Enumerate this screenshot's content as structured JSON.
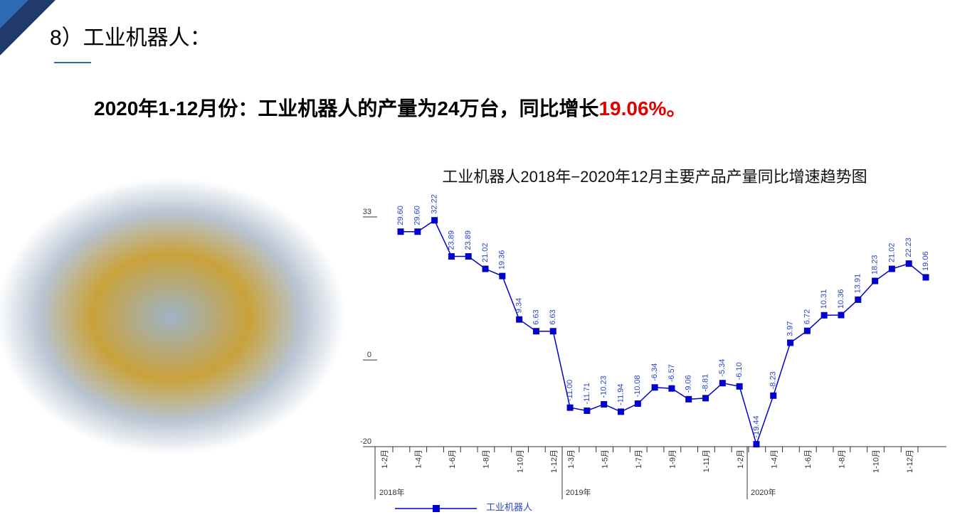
{
  "slide_title": "8）工业机器人：",
  "headline": {
    "text": "2020年1-12月份：工业机器人的产量为24万台，同比增长",
    "highlight": "19.06%。"
  },
  "chart_data": {
    "type": "line",
    "title": "工业机器人2018年−2020年12月主要产品产量同比增速趋势图",
    "categories": [
      "1-2月",
      null,
      "1-4月",
      null,
      "1-6月",
      null,
      "1-8月",
      null,
      "1-10月",
      null,
      "1-12月",
      "1-3月",
      null,
      "1-5月",
      null,
      "1-7月",
      null,
      "1-9月",
      null,
      "1-11月",
      null,
      "1-2月",
      null,
      "1-4月",
      null,
      "1-6月",
      null,
      "1-8月",
      null,
      "1-10月",
      null,
      "1-12月"
    ],
    "x_groups": [
      "2018年",
      "2019年",
      "2020年"
    ],
    "series": [
      {
        "name": "工业机器人",
        "color": "#0000cc",
        "values": [
          29.6,
          29.6,
          32.22,
          23.89,
          23.89,
          21.02,
          19.36,
          9.34,
          6.63,
          6.63,
          -11.0,
          -11.71,
          -10.23,
          -11.94,
          -10.08,
          -6.34,
          -6.57,
          -9.06,
          -8.81,
          -5.34,
          -6.1,
          -19.44,
          -8.23,
          3.97,
          6.72,
          10.31,
          10.36,
          13.91,
          18.23,
          21.02,
          22.23,
          19.06
        ],
        "value_labels": [
          "29.60",
          "29.60",
          "32.22",
          "23.89",
          "23.89",
          "21.02",
          "19.36",
          "9.34",
          "6.63",
          "6.63",
          "-11.00",
          "-11.71",
          "-10.23",
          "-11.94",
          "-10.08",
          "-6.34",
          "-6.57",
          "-9.06",
          "-8.81",
          "-5.34",
          "-6.10",
          "-19.44",
          "-8.23",
          "3.97",
          "6.72",
          "10.31",
          "10.36",
          "13.91",
          "18.23",
          "21.02",
          "22.23",
          "19.06"
        ]
      }
    ],
    "ylim": [
      -20,
      33
    ],
    "yticks": [
      -20,
      0,
      33
    ],
    "grid": false
  }
}
